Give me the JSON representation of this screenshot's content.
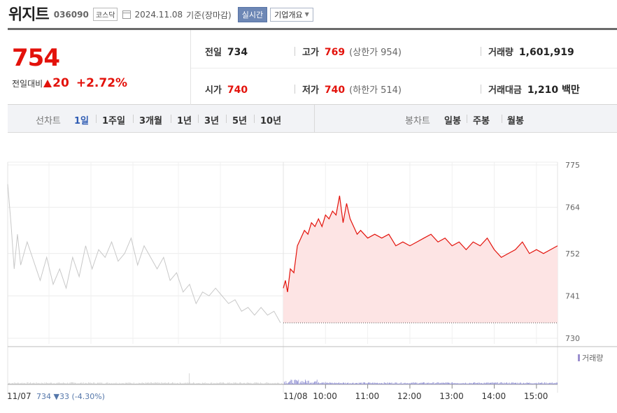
{
  "stock": {
    "name": "위지트",
    "code": "036090",
    "market": "코스닥",
    "date": "2024.11.08",
    "basis": "기준(장마감)",
    "realtime_label": "실시간",
    "company_label": "기업개요"
  },
  "price": {
    "current": "754",
    "change_label": "전일대비",
    "change": "20",
    "change_pct": "+2.72%"
  },
  "stats": {
    "prev_close_label": "전일",
    "prev_close": "734",
    "high_label": "고가",
    "high": "769",
    "upper_limit_label": "(상한가",
    "upper_limit": "954)",
    "volume_label": "거래량",
    "volume": "1,601,919",
    "open_label": "시가",
    "open": "740",
    "low_label": "저가",
    "low": "740",
    "lower_limit_label": "(하한가",
    "lower_limit": "514)",
    "amount_label": "거래대금",
    "amount": "1,210 백만"
  },
  "tabs": {
    "line_label": "선차트",
    "line_periods": [
      "1일",
      "1주일",
      "3개월",
      "1년",
      "3년",
      "5년",
      "10년"
    ],
    "active": "1일",
    "candle_label": "봉차트",
    "candle_periods": [
      "일봉",
      "주봉",
      "월봉"
    ]
  },
  "colors": {
    "up": "#e3120b",
    "accent": "#2f5cb3",
    "prev_line": "#c8c8c8",
    "fill": "#fde4e4"
  },
  "chart_data": {
    "type": "line",
    "ylim": [
      730,
      775
    ],
    "yticks": [
      775,
      764,
      752,
      741,
      730
    ],
    "prev_close": 734,
    "prev_day": {
      "date": "11/07",
      "close": "734",
      "change": "▼33",
      "change_pct": "(-4.30%)",
      "series": [
        [
          0,
          770
        ],
        [
          0.5,
          760
        ],
        [
          1,
          748
        ],
        [
          1.5,
          757
        ],
        [
          2,
          749
        ],
        [
          3,
          755
        ],
        [
          4,
          750
        ],
        [
          5,
          745
        ],
        [
          6,
          751
        ],
        [
          7,
          744
        ],
        [
          8,
          748
        ],
        [
          9,
          743
        ],
        [
          10,
          751
        ],
        [
          11,
          746
        ],
        [
          12,
          754
        ],
        [
          13,
          748
        ],
        [
          14,
          753
        ],
        [
          15,
          751
        ],
        [
          16,
          755
        ],
        [
          17,
          750
        ],
        [
          18,
          752
        ],
        [
          19,
          756
        ],
        [
          20,
          749
        ],
        [
          21,
          754
        ],
        [
          22,
          751
        ],
        [
          23,
          748
        ],
        [
          24,
          751
        ],
        [
          25,
          745
        ],
        [
          26,
          747
        ],
        [
          27,
          742
        ],
        [
          28,
          744
        ],
        [
          29,
          739
        ],
        [
          30,
          742
        ],
        [
          31,
          741
        ],
        [
          32,
          743
        ],
        [
          33,
          741
        ],
        [
          34,
          739
        ],
        [
          35,
          740
        ],
        [
          36,
          737
        ],
        [
          37,
          738
        ],
        [
          38,
          736
        ],
        [
          39,
          738
        ],
        [
          40,
          736
        ],
        [
          41,
          737
        ],
        [
          42,
          734
        ]
      ]
    },
    "today": {
      "date": "11/08",
      "volume_label": "거래량",
      "times": [
        "10:00",
        "11:00",
        "12:00",
        "13:00",
        "14:00",
        "15:00"
      ],
      "series": [
        [
          "09:00",
          743
        ],
        [
          "09:03",
          745
        ],
        [
          "09:06",
          742
        ],
        [
          "09:10",
          748
        ],
        [
          "09:15",
          747
        ],
        [
          "09:20",
          754
        ],
        [
          "09:25",
          756
        ],
        [
          "09:30",
          758
        ],
        [
          "09:35",
          757
        ],
        [
          "09:40",
          760
        ],
        [
          "09:45",
          759
        ],
        [
          "09:50",
          761
        ],
        [
          "09:55",
          759
        ],
        [
          "10:00",
          762
        ],
        [
          "10:05",
          761
        ],
        [
          "10:10",
          763
        ],
        [
          "10:15",
          762
        ],
        [
          "10:20",
          767
        ],
        [
          "10:25",
          760
        ],
        [
          "10:30",
          765
        ],
        [
          "10:35",
          761
        ],
        [
          "10:40",
          759
        ],
        [
          "10:45",
          757
        ],
        [
          "10:50",
          758
        ],
        [
          "10:55",
          757
        ],
        [
          "11:00",
          756
        ],
        [
          "11:10",
          757
        ],
        [
          "11:20",
          756
        ],
        [
          "11:30",
          757
        ],
        [
          "11:40",
          754
        ],
        [
          "11:50",
          755
        ],
        [
          "12:00",
          754
        ],
        [
          "12:10",
          755
        ],
        [
          "12:20",
          756
        ],
        [
          "12:30",
          757
        ],
        [
          "12:40",
          755
        ],
        [
          "12:50",
          756
        ],
        [
          "13:00",
          754
        ],
        [
          "13:10",
          755
        ],
        [
          "13:20",
          753
        ],
        [
          "13:30",
          755
        ],
        [
          "13:40",
          754
        ],
        [
          "13:50",
          756
        ],
        [
          "14:00",
          753
        ],
        [
          "14:10",
          751
        ],
        [
          "14:20",
          752
        ],
        [
          "14:30",
          753
        ],
        [
          "14:40",
          755
        ],
        [
          "14:50",
          752
        ],
        [
          "15:00",
          753
        ],
        [
          "15:10",
          752
        ],
        [
          "15:20",
          753
        ],
        [
          "15:30",
          754
        ]
      ]
    }
  }
}
